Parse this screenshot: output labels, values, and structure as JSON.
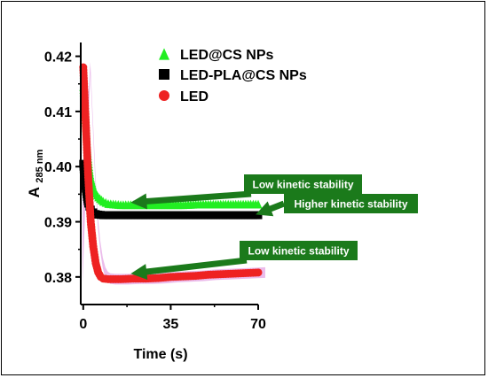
{
  "chart_data": {
    "type": "scatter",
    "title": "",
    "xlabel": "Time (s)",
    "ylabel_main": "A",
    "ylabel_sub": "285 nm",
    "xlim": [
      -1,
      70
    ],
    "ylim": [
      0.375,
      0.4225
    ],
    "x_ticks": [
      0,
      35,
      70
    ],
    "y_ticks": [
      0.38,
      0.39,
      0.4,
      0.41,
      0.42
    ],
    "y_tick_labels": [
      "0.38",
      "0.39",
      "0.40",
      "0.41",
      "0.42"
    ],
    "legend_position": "top-right",
    "series": [
      {
        "name": "LED@CS NPs",
        "marker": "triangle",
        "color": "#22ee22",
        "x": [
          0,
          0.5,
          1,
          1.5,
          2,
          2.5,
          3,
          4,
          5,
          6,
          8,
          10,
          15,
          20,
          25,
          30,
          35,
          40,
          45,
          50,
          55,
          60,
          65,
          70
        ],
        "y": [
          0.4145,
          0.411,
          0.4075,
          0.404,
          0.4015,
          0.3995,
          0.398,
          0.3962,
          0.3952,
          0.3945,
          0.3937,
          0.3933,
          0.3931,
          0.3931,
          0.3931,
          0.3931,
          0.3931,
          0.3931,
          0.3932,
          0.3932,
          0.3932,
          0.3932,
          0.3932,
          0.3932
        ]
      },
      {
        "name": "LED-PLA@CS NPs",
        "marker": "square",
        "color": "#000000",
        "x": [
          0,
          0.5,
          1,
          1.5,
          2,
          3,
          4,
          5,
          6,
          8,
          10,
          15,
          20,
          25,
          30,
          35,
          40,
          45,
          50,
          55,
          60,
          65,
          70
        ],
        "y": [
          0.4005,
          0.398,
          0.396,
          0.3945,
          0.3933,
          0.3922,
          0.3917,
          0.3914,
          0.3913,
          0.3912,
          0.3912,
          0.3912,
          0.3912,
          0.3912,
          0.3912,
          0.3912,
          0.3912,
          0.3912,
          0.3912,
          0.3912,
          0.3912,
          0.3912,
          0.3912
        ]
      },
      {
        "name": "LED",
        "marker": "circle",
        "color": "#ee2222",
        "x": [
          0,
          0.5,
          1,
          1.5,
          2,
          2.5,
          3,
          4,
          5,
          6,
          7,
          8,
          10,
          15,
          20,
          25,
          30,
          35,
          40,
          45,
          50,
          55,
          60,
          65,
          70
        ],
        "y": [
          0.418,
          0.413,
          0.408,
          0.403,
          0.398,
          0.394,
          0.39,
          0.3855,
          0.3825,
          0.3808,
          0.38,
          0.3797,
          0.3796,
          0.3796,
          0.3797,
          0.3797,
          0.3798,
          0.38,
          0.3801,
          0.3802,
          0.3804,
          0.3805,
          0.3806,
          0.3807,
          0.3808
        ]
      }
    ],
    "annotations": [
      {
        "text": "Low kinetic stability",
        "target_x": 19,
        "target_y": 0.3935
      },
      {
        "text": "Higher kinetic stability",
        "target_x": 69,
        "target_y": 0.3913
      },
      {
        "text": "Low kinetic stability",
        "target_x": 19,
        "target_y": 0.3806
      }
    ],
    "colors": {
      "annotation_box": "#1b7a1b",
      "annotation_text": "#ffffff",
      "led_band": "#e7b0e7"
    }
  }
}
